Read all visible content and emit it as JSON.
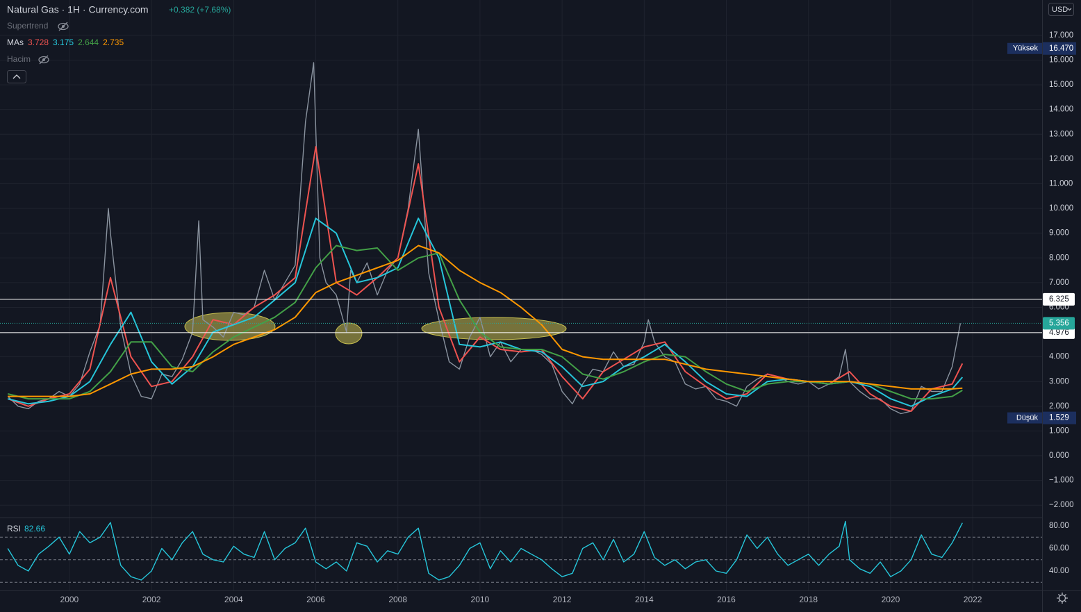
{
  "chart_data": [
    {
      "type": "line",
      "title": "Natural Gas · 1H · Currency.com",
      "change": "+0.382 (+7.68%)",
      "currency": "USD",
      "indicators": [
        "Supertrend",
        "MAs",
        "Hacim"
      ],
      "xlim": [
        1998.31,
        2023.69
      ],
      "xticks": [
        2000,
        2002,
        2004,
        2006,
        2008,
        2010,
        2012,
        2014,
        2016,
        2018,
        2020,
        2022
      ],
      "ylim": [
        -2.5,
        18.43
      ],
      "yticks": [
        {
          "value": -2,
          "label": "−2.000"
        },
        {
          "value": -1,
          "label": "−1.000"
        },
        {
          "value": 0,
          "label": "0.000"
        },
        {
          "value": 1,
          "label": "1.000"
        },
        {
          "value": 2,
          "label": "2.000"
        },
        {
          "value": 3,
          "label": "3.000"
        },
        {
          "value": 4,
          "label": "4.000"
        },
        {
          "value": 5,
          "label": "5.000"
        },
        {
          "value": 6,
          "label": "6.000"
        },
        {
          "value": 7,
          "label": "7.000"
        },
        {
          "value": 8,
          "label": "8.000"
        },
        {
          "value": 9,
          "label": "9.000"
        },
        {
          "value": 10,
          "label": "10.000"
        },
        {
          "value": 11,
          "label": "11.000"
        },
        {
          "value": 12,
          "label": "12.000"
        },
        {
          "value": 13,
          "label": "13.000"
        },
        {
          "value": 14,
          "label": "14.000"
        },
        {
          "value": 15,
          "label": "15.000"
        },
        {
          "value": 16,
          "label": "16.000"
        },
        {
          "value": 17,
          "label": "17.000"
        }
      ],
      "grid": true,
      "high": {
        "label": "Yüksek",
        "value": 16.47,
        "value_label": "16.470"
      },
      "low": {
        "label": "Düşük",
        "value": 1.529
      },
      "hlines": [
        6.325,
        4.976
      ],
      "last_price": 5.356,
      "series": [
        {
          "color": "#8a939f",
          "x": [
            1998.5,
            1998.75,
            1999,
            1999.25,
            1999.5,
            1999.75,
            2000,
            2000.25,
            2000.5,
            2000.75,
            2000.95,
            2001,
            2001.25,
            2001.5,
            2001.75,
            2002,
            2002.25,
            2002.5,
            2002.75,
            2003,
            2003.15,
            2003.25,
            2003.5,
            2003.75,
            2004,
            2004.25,
            2004.5,
            2004.75,
            2005,
            2005.25,
            2005.5,
            2005.75,
            2005.95,
            2006.1,
            2006.25,
            2006.5,
            2006.75,
            2006.85,
            2007,
            2007.25,
            2007.5,
            2007.75,
            2008,
            2008.25,
            2008.5,
            2008.75,
            2009,
            2009.25,
            2009.5,
            2009.75,
            2010,
            2010.25,
            2010.5,
            2010.75,
            2011,
            2011.25,
            2011.5,
            2011.75,
            2012,
            2012.25,
            2012.5,
            2012.75,
            2013,
            2013.25,
            2013.5,
            2013.75,
            2014,
            2014.1,
            2014.25,
            2014.5,
            2014.75,
            2015,
            2015.25,
            2015.5,
            2015.75,
            2016,
            2016.25,
            2016.5,
            2016.75,
            2017,
            2017.25,
            2017.5,
            2017.75,
            2018,
            2018.25,
            2018.5,
            2018.75,
            2018.9,
            2019,
            2019.25,
            2019.5,
            2019.75,
            2020,
            2020.25,
            2020.5,
            2020.75,
            2021,
            2021.25,
            2021.5,
            2021.7
          ],
          "values": [
            2.4,
            2.0,
            1.9,
            2.2,
            2.3,
            2.6,
            2.4,
            2.9,
            4.2,
            5.3,
            10.0,
            9.0,
            5.2,
            3.3,
            2.4,
            2.3,
            3.3,
            3.2,
            3.9,
            5.0,
            9.5,
            5.5,
            5.2,
            4.8,
            5.8,
            5.7,
            6.0,
            7.5,
            6.3,
            7.0,
            7.7,
            13.5,
            15.9,
            8.0,
            7.0,
            6.5,
            5.0,
            7.5,
            7.0,
            7.8,
            6.5,
            7.5,
            8.0,
            10.0,
            13.2,
            7.4,
            5.5,
            3.8,
            3.5,
            4.8,
            5.6,
            4.0,
            4.6,
            3.8,
            4.3,
            4.3,
            4.1,
            3.7,
            2.6,
            2.1,
            2.9,
            3.5,
            3.4,
            4.2,
            3.6,
            3.7,
            4.6,
            5.5,
            4.6,
            4.0,
            3.8,
            2.9,
            2.7,
            2.8,
            2.3,
            2.2,
            2.0,
            2.8,
            3.1,
            3.3,
            3.2,
            3.0,
            2.9,
            3.0,
            2.7,
            2.9,
            3.2,
            4.3,
            3.0,
            2.6,
            2.3,
            2.3,
            1.9,
            1.7,
            1.8,
            2.8,
            2.6,
            2.6,
            3.6,
            5.356
          ]
        },
        {
          "color": "#ef5350",
          "x": [
            1998.5,
            1999,
            1999.5,
            2000,
            2000.5,
            2001,
            2001.5,
            2002,
            2002.5,
            2003,
            2003.5,
            2004,
            2004.5,
            2005,
            2005.5,
            2006,
            2006.5,
            2007,
            2007.5,
            2008,
            2008.5,
            2009,
            2009.5,
            2010,
            2010.5,
            2011,
            2011.5,
            2012,
            2012.5,
            2013,
            2013.5,
            2014,
            2014.5,
            2015,
            2015.5,
            2016,
            2016.5,
            2017,
            2017.5,
            2018,
            2018.5,
            2019,
            2019.5,
            2020,
            2020.5,
            2021,
            2021.5,
            2021.75
          ],
          "values": [
            2.3,
            2.0,
            2.3,
            2.5,
            3.5,
            7.2,
            4.0,
            2.8,
            3.0,
            4.0,
            5.5,
            5.3,
            6.0,
            6.5,
            7.2,
            12.5,
            7.0,
            6.5,
            7.2,
            8.0,
            11.8,
            6.0,
            3.8,
            4.8,
            4.3,
            4.2,
            4.3,
            3.2,
            2.3,
            3.4,
            3.9,
            4.4,
            4.6,
            3.4,
            2.8,
            2.3,
            2.5,
            3.3,
            3.1,
            3.0,
            2.9,
            3.4,
            2.5,
            2.0,
            1.8,
            2.7,
            2.9,
            3.728
          ]
        },
        {
          "color": "#26c6da",
          "x": [
            1998.5,
            1999,
            1999.5,
            2000,
            2000.5,
            2001,
            2001.5,
            2002,
            2002.5,
            2003,
            2003.5,
            2004,
            2004.5,
            2005,
            2005.5,
            2006,
            2006.5,
            2007,
            2007.5,
            2008,
            2008.5,
            2009,
            2009.5,
            2010,
            2010.5,
            2011,
            2011.5,
            2012,
            2012.5,
            2013,
            2013.5,
            2014,
            2014.5,
            2015,
            2015.5,
            2016,
            2016.5,
            2017,
            2017.5,
            2018,
            2018.5,
            2019,
            2019.5,
            2020,
            2020.5,
            2021,
            2021.5,
            2021.75
          ],
          "values": [
            2.3,
            2.1,
            2.2,
            2.4,
            3.0,
            4.5,
            5.8,
            3.8,
            2.9,
            3.6,
            5.0,
            5.3,
            5.6,
            6.3,
            7.0,
            9.6,
            9.0,
            7.0,
            7.2,
            7.6,
            9.6,
            8.0,
            4.5,
            4.4,
            4.6,
            4.3,
            4.2,
            3.6,
            2.8,
            3.0,
            3.6,
            4.0,
            4.5,
            3.8,
            3.0,
            2.5,
            2.4,
            3.0,
            3.1,
            3.0,
            2.9,
            3.0,
            2.8,
            2.3,
            2.0,
            2.4,
            2.7,
            3.175
          ]
        },
        {
          "color": "#43a047",
          "x": [
            1998.5,
            1999,
            1999.5,
            2000,
            2000.5,
            2001,
            2001.5,
            2002,
            2002.5,
            2003,
            2003.5,
            2004,
            2004.5,
            2005,
            2005.5,
            2006,
            2006.5,
            2007,
            2007.5,
            2008,
            2008.5,
            2009,
            2009.5,
            2010,
            2010.5,
            2011,
            2011.5,
            2012,
            2012.5,
            2013,
            2013.5,
            2014,
            2014.5,
            2015,
            2015.5,
            2016,
            2016.5,
            2017,
            2017.5,
            2018,
            2018.5,
            2019,
            2019.5,
            2020,
            2020.5,
            2021,
            2021.5,
            2021.75
          ],
          "values": [
            2.5,
            2.3,
            2.3,
            2.3,
            2.6,
            3.4,
            4.6,
            4.6,
            3.6,
            3.4,
            4.2,
            4.8,
            5.2,
            5.6,
            6.2,
            7.6,
            8.5,
            8.3,
            8.4,
            7.5,
            8.0,
            8.2,
            6.3,
            5.0,
            4.4,
            4.3,
            4.3,
            4.0,
            3.3,
            3.1,
            3.4,
            3.8,
            4.1,
            4.0,
            3.4,
            2.9,
            2.6,
            2.9,
            3.0,
            3.0,
            2.9,
            3.0,
            2.9,
            2.6,
            2.3,
            2.3,
            2.4,
            2.644
          ]
        },
        {
          "color": "#ff9800",
          "x": [
            1998.5,
            1999,
            1999.5,
            2000,
            2000.5,
            2001,
            2001.5,
            2002,
            2002.5,
            2003,
            2003.5,
            2004,
            2004.5,
            2005,
            2005.5,
            2006,
            2006.5,
            2007,
            2007.5,
            2008,
            2008.5,
            2009,
            2009.5,
            2010,
            2010.5,
            2011,
            2011.5,
            2012,
            2012.5,
            2013,
            2013.5,
            2014,
            2014.5,
            2015,
            2015.5,
            2016,
            2016.5,
            2017,
            2017.5,
            2018,
            2018.5,
            2019,
            2019.5,
            2020,
            2020.5,
            2021,
            2021.5,
            2021.75
          ],
          "values": [
            2.4,
            2.4,
            2.4,
            2.4,
            2.5,
            2.9,
            3.3,
            3.5,
            3.5,
            3.6,
            4.0,
            4.5,
            4.8,
            5.1,
            5.6,
            6.6,
            7.0,
            7.3,
            7.6,
            7.9,
            8.5,
            8.2,
            7.5,
            7.0,
            6.6,
            6.0,
            5.3,
            4.3,
            4.0,
            3.9,
            3.9,
            3.9,
            3.9,
            3.7,
            3.5,
            3.4,
            3.3,
            3.2,
            3.1,
            3.0,
            3.0,
            3.0,
            2.9,
            2.8,
            2.7,
            2.7,
            2.7,
            2.735
          ]
        }
      ]
    },
    {
      "type": "line",
      "title": "RSI",
      "xlim": [
        1998.31,
        2023.69
      ],
      "ylim": [
        22.8,
        87.4
      ],
      "yticks": [
        {
          "value": 40,
          "label": "40.00"
        },
        {
          "value": 60,
          "label": "60.00"
        },
        {
          "value": 80,
          "label": "80.00"
        }
      ],
      "bands": [
        70,
        50,
        30
      ],
      "series": [
        {
          "color": "#26c6da",
          "x": [
            1998.5,
            1998.75,
            1999,
            1999.25,
            1999.5,
            1999.75,
            2000,
            2000.25,
            2000.5,
            2000.75,
            2001,
            2001.25,
            2001.5,
            2001.75,
            2002,
            2002.25,
            2002.5,
            2002.75,
            2003,
            2003.25,
            2003.5,
            2003.75,
            2004,
            2004.25,
            2004.5,
            2004.75,
            2005,
            2005.25,
            2005.5,
            2005.75,
            2006,
            2006.25,
            2006.5,
            2006.75,
            2007,
            2007.25,
            2007.5,
            2007.75,
            2008,
            2008.25,
            2008.5,
            2008.75,
            2009,
            2009.25,
            2009.5,
            2009.75,
            2010,
            2010.25,
            2010.5,
            2010.75,
            2011,
            2011.25,
            2011.5,
            2011.75,
            2012,
            2012.25,
            2012.5,
            2012.75,
            2013,
            2013.25,
            2013.5,
            2013.75,
            2014,
            2014.25,
            2014.5,
            2014.75,
            2015,
            2015.25,
            2015.5,
            2015.75,
            2016,
            2016.25,
            2016.5,
            2016.75,
            2017,
            2017.25,
            2017.5,
            2017.75,
            2018,
            2018.25,
            2018.5,
            2018.75,
            2018.9,
            2019,
            2019.25,
            2019.5,
            2019.75,
            2020,
            2020.25,
            2020.5,
            2020.75,
            2021,
            2021.25,
            2021.5,
            2021.75
          ],
          "values": [
            60,
            45,
            40,
            55,
            62,
            70,
            55,
            75,
            65,
            70,
            83,
            45,
            35,
            32,
            40,
            60,
            50,
            65,
            75,
            55,
            50,
            48,
            62,
            55,
            52,
            75,
            50,
            60,
            65,
            78,
            48,
            42,
            48,
            40,
            65,
            62,
            48,
            58,
            55,
            70,
            78,
            38,
            32,
            35,
            45,
            60,
            65,
            42,
            58,
            48,
            60,
            55,
            50,
            42,
            35,
            38,
            60,
            65,
            50,
            68,
            48,
            55,
            75,
            52,
            45,
            50,
            42,
            48,
            50,
            40,
            38,
            50,
            72,
            60,
            70,
            55,
            45,
            50,
            55,
            45,
            55,
            62,
            84,
            50,
            42,
            38,
            48,
            35,
            40,
            50,
            72,
            55,
            52,
            65,
            82.66
          ]
        }
      ]
    }
  ]
}
